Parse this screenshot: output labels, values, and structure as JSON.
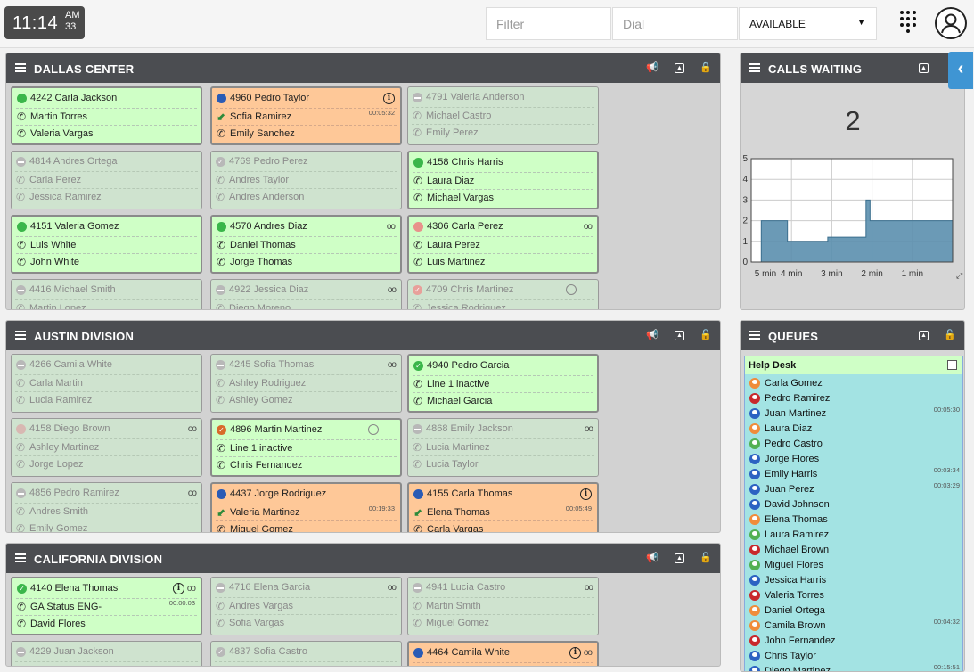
{
  "header": {
    "clock_time": "11:14",
    "clock_ampm": "AM",
    "clock_seconds": "33",
    "filter_placeholder": "Filter",
    "dial_placeholder": "Dial",
    "status_value": "AVAILABLE"
  },
  "panels": {
    "dallas": {
      "title": "DALLAS CENTER",
      "cards": [
        {
          "ext": "4242 Carla Jackson",
          "line1": "Martin Torres",
          "line2": "Valeria Vargas",
          "state": "active",
          "status": "green"
        },
        {
          "ext": "4960 Pedro Taylor",
          "line1": "Sofia Ramirez",
          "line2": "Emily Sanchez",
          "state": "busy",
          "status": "blue",
          "info": true,
          "duration": "00:05:32"
        },
        {
          "ext": "4791 Valeria Anderson",
          "line1": "Michael Castro",
          "line2": "Emily Perez",
          "state": "inactive",
          "status": "nodnd"
        },
        {
          "ext": "4814 Andres Ortega",
          "line1": "Carla Perez",
          "line2": "Jessica Ramirez",
          "state": "inactive",
          "status": "nodnd"
        },
        {
          "ext": "4769 Pedro Perez",
          "line1": "Andres Taylor",
          "line2": "Andres Anderson",
          "state": "inactive",
          "status": "check"
        },
        {
          "ext": "4158 Chris Harris",
          "line1": "Laura Diaz",
          "line2": "Michael Vargas",
          "state": "active",
          "status": "green"
        },
        {
          "ext": "4151 Valeria Gomez",
          "line1": "Luis White",
          "line2": "John White",
          "state": "active",
          "status": "green"
        },
        {
          "ext": "4570 Andres Diaz",
          "line1": "Daniel Thomas",
          "line2": "Jorge Thomas",
          "state": "active",
          "status": "green",
          "voicemail": true
        },
        {
          "ext": "4306 Carla Perez",
          "line1": "Laura Perez",
          "line2": "Luis Martinez",
          "state": "active",
          "status": "pink",
          "voicemail": true
        },
        {
          "ext": "4416 Michael Smith",
          "line1": "Martin Lopez",
          "line2": "",
          "state": "inactive",
          "status": "nodnd"
        },
        {
          "ext": "4922 Jessica Diaz",
          "line1": "Diego Moreno",
          "line2": "",
          "state": "inactive",
          "status": "nodnd",
          "voicemail": true
        },
        {
          "ext": "4709 Chris Martinez",
          "line1": "Jessica Rodriguez",
          "line2": "",
          "state": "inactive",
          "status": "check-red",
          "clock": true
        }
      ]
    },
    "austin": {
      "title": "AUSTIN DIVISION",
      "cards": [
        {
          "ext": "4266 Camila White",
          "line1": "Carla Martin",
          "line2": "Lucia Ramirez",
          "state": "inactive",
          "status": "nodnd"
        },
        {
          "ext": "4245 Sofia Thomas",
          "line1": "Ashley Rodriguez",
          "line2": "Ashley Gomez",
          "state": "inactive",
          "status": "nodnd",
          "voicemail": true
        },
        {
          "ext": "4940 Pedro Garcia",
          "line1": "Line 1 inactive",
          "line2": "Michael Garcia",
          "state": "active",
          "status": "check-green"
        },
        {
          "ext": "4158 Diego Brown",
          "line1": "Ashley Martinez",
          "line2": "Jorge Lopez",
          "state": "inactive",
          "status": "pinkgray",
          "voicemail": true
        },
        {
          "ext": "4896 Martin Martinez",
          "line1": "Line 1 inactive",
          "line2": "Chris Fernandez",
          "state": "active",
          "status": "check-orange",
          "clock": true
        },
        {
          "ext": "4868 Emily Jackson",
          "line1": "Lucia Martinez",
          "line2": "Lucia Taylor",
          "state": "inactive",
          "status": "nodnd",
          "voicemail": true
        },
        {
          "ext": "4856 Pedro Ramirez",
          "line1": "Andres Smith",
          "line2": "Emily Gomez",
          "state": "inactive",
          "status": "nodnd",
          "voicemail": true
        },
        {
          "ext": "4437 Jorge Rodriguez",
          "line1": "Valeria Martinez",
          "line2": "Miguel Gomez",
          "state": "busy",
          "status": "blue",
          "duration": "00:19:33"
        },
        {
          "ext": "4155 Carla Thomas",
          "line1": "Elena Thomas",
          "line2": "Carla Vargas",
          "state": "busy",
          "status": "blue",
          "info": true,
          "duration": "00:05:49"
        }
      ]
    },
    "california": {
      "title": "CALIFORNIA DIVISION",
      "cards": [
        {
          "ext": "4140 Elena Thomas",
          "line1": "GA Status ENG-",
          "line2": "David Flores",
          "state": "active",
          "status": "check-green",
          "info": true,
          "voicemail": true,
          "duration": "00:00:03"
        },
        {
          "ext": "4716 Elena Garcia",
          "line1": "Andres Vargas",
          "line2": "Sofia Vargas",
          "state": "inactive",
          "status": "nodnd",
          "voicemail": true
        },
        {
          "ext": "4941 Lucia Castro",
          "line1": "Martin Smith",
          "line2": "Miguel Gomez",
          "state": "inactive",
          "status": "nodnd",
          "voicemail": true
        },
        {
          "ext": "4229 Juan Jackson",
          "line1": "",
          "line2": "",
          "state": "inactive",
          "status": "nodnd"
        },
        {
          "ext": "4837 Sofia Castro",
          "line1": "",
          "line2": "",
          "state": "inactive",
          "status": "check"
        },
        {
          "ext": "4464 Camila White",
          "line1": "",
          "line2": "",
          "state": "busy",
          "status": "blue",
          "info": true,
          "voicemail": true
        }
      ]
    }
  },
  "calls_waiting": {
    "title": "CALLS WAITING",
    "count": "2"
  },
  "chart_data": {
    "type": "area",
    "x_tick_labels": [
      "5 min",
      "4 min",
      "3 min",
      "2 min",
      "1 min"
    ],
    "y_tick_labels": [
      "0",
      "1",
      "2",
      "3",
      "4",
      "5"
    ],
    "ylim": [
      0,
      5
    ],
    "xlim": [
      5,
      0
    ],
    "x": [
      5.0,
      4.75,
      4.75,
      4.1,
      4.1,
      3.1,
      3.1,
      2.15,
      2.15,
      2.05,
      2.05,
      0
    ],
    "values": [
      0,
      0,
      2,
      2,
      1,
      1,
      1.2,
      1.2,
      3,
      3,
      2,
      2
    ],
    "grid": true,
    "color": "#5b8fae"
  },
  "queues": {
    "title": "QUEUES",
    "group": "Help Desk",
    "members": [
      {
        "name": "Carla Gomez",
        "avatar": "orange",
        "time": ""
      },
      {
        "name": "Pedro Ramirez",
        "avatar": "red",
        "time": ""
      },
      {
        "name": "Juan Martinez",
        "avatar": "blue",
        "time": "00:05:30"
      },
      {
        "name": "Laura Diaz",
        "avatar": "orange",
        "time": ""
      },
      {
        "name": "Pedro Castro",
        "avatar": "green",
        "time": ""
      },
      {
        "name": "Jorge Flores",
        "avatar": "blue",
        "time": ""
      },
      {
        "name": "Emily Harris",
        "avatar": "blue",
        "time": "00:03:34"
      },
      {
        "name": "Juan Perez",
        "avatar": "blue",
        "time": "00:03:29"
      },
      {
        "name": "David Johnson",
        "avatar": "blue",
        "time": ""
      },
      {
        "name": "Elena Thomas",
        "avatar": "orange",
        "time": ""
      },
      {
        "name": "Laura Ramirez",
        "avatar": "green",
        "time": ""
      },
      {
        "name": "Michael Brown",
        "avatar": "red",
        "time": ""
      },
      {
        "name": "Miguel Flores",
        "avatar": "green",
        "time": ""
      },
      {
        "name": "Jessica Harris",
        "avatar": "blue",
        "time": ""
      },
      {
        "name": "Valeria Torres",
        "avatar": "red",
        "time": ""
      },
      {
        "name": "Daniel Ortega",
        "avatar": "orange",
        "time": ""
      },
      {
        "name": "Camila Brown",
        "avatar": "orange",
        "time": "00:04:32"
      },
      {
        "name": "John Fernandez",
        "avatar": "red",
        "time": ""
      },
      {
        "name": "Chris Taylor",
        "avatar": "blue",
        "time": ""
      },
      {
        "name": "Diego Martinez",
        "avatar": "blue",
        "time": "00:15:51"
      }
    ]
  }
}
